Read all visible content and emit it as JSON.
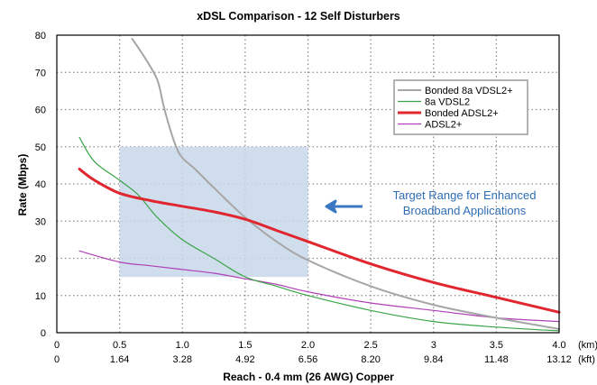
{
  "chart_data": {
    "type": "line",
    "title": "xDSL Comparison - 12 Self Disturbers",
    "xlabel": "Reach - 0.4 mm (26 AWG) Copper",
    "ylabel": "Rate (Mbps)",
    "xlim": [
      0,
      4.0
    ],
    "ylim": [
      0,
      80
    ],
    "x_unit_primary": "(km)",
    "x_unit_secondary": "(kft)",
    "x_ticks_km": [
      "0",
      "0.5",
      "1.0",
      "1.5",
      "2.0",
      "2.5",
      "3",
      "3.5",
      "4.0"
    ],
    "x_ticks_kft": [
      "0",
      "1.64",
      "3.28",
      "4.92",
      "6.56",
      "8.20",
      "9.84",
      "11.48",
      "13.12"
    ],
    "y_ticks": [
      "0",
      "10",
      "20",
      "30",
      "40",
      "50",
      "60",
      "70",
      "80"
    ],
    "grid": true,
    "legend_position": "top-right",
    "annotation": {
      "line1": "Target Range for Enhanced",
      "line2": "Broadband Applications",
      "arrow": "left",
      "color": "#3a78c2"
    },
    "target_range": {
      "x": [
        0.5,
        2.0
      ],
      "y": [
        15,
        50
      ],
      "color": "#c8d7ea"
    },
    "series": [
      {
        "name": "Bonded 8a VDSL2+",
        "color": "#a6a6a6",
        "width": 2,
        "x": [
          0.6,
          0.7,
          0.8,
          0.85,
          0.9,
          0.95,
          1.0,
          1.1,
          1.25,
          1.5,
          1.75,
          2.0,
          2.5,
          3.0,
          3.5,
          4.0
        ],
        "y": [
          79,
          74,
          68,
          61,
          55,
          50,
          47,
          44,
          39,
          31,
          24.5,
          19.5,
          12.5,
          7.5,
          4,
          1
        ]
      },
      {
        "name": "8a VDSL2",
        "color": "#3aa447",
        "width": 1.2,
        "x": [
          0.18,
          0.3,
          0.5,
          0.65,
          0.8,
          1.0,
          1.25,
          1.5,
          1.75,
          2.0,
          2.5,
          3.0,
          3.5,
          4.0
        ],
        "y": [
          52.5,
          46,
          41,
          37,
          31,
          25,
          20,
          15,
          12.5,
          10,
          6,
          3,
          1.5,
          0.5
        ]
      },
      {
        "name": "Bonded ADSL2+",
        "color": "#e0262f",
        "width": 3,
        "x": [
          0.18,
          0.3,
          0.5,
          0.75,
          1.0,
          1.25,
          1.5,
          1.75,
          2.0,
          2.5,
          3.0,
          3.5,
          4.0
        ],
        "y": [
          44,
          41,
          37.5,
          35.5,
          34,
          32.5,
          30.5,
          27.5,
          24.5,
          18.5,
          13.5,
          9.5,
          5.5
        ]
      },
      {
        "name": "ADSL2+",
        "color": "#b040b8",
        "width": 1.2,
        "x": [
          0.18,
          0.5,
          0.75,
          1.0,
          1.25,
          1.5,
          1.75,
          2.0,
          2.5,
          3.0,
          3.5,
          4.0
        ],
        "y": [
          22,
          19,
          18,
          17,
          16,
          14.5,
          13,
          11,
          8,
          6,
          4,
          3
        ]
      }
    ]
  }
}
